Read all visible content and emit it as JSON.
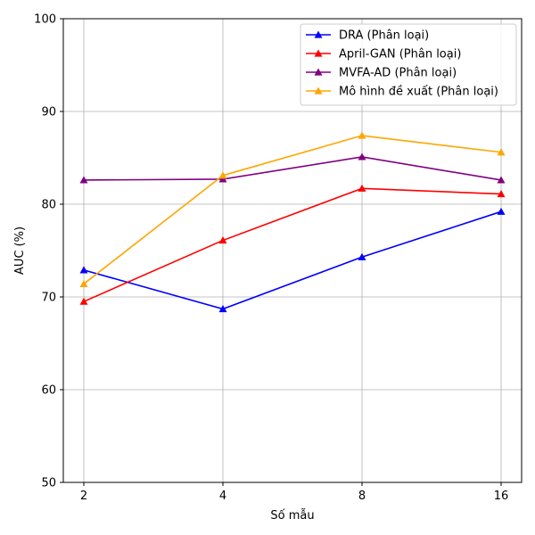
{
  "chart_data": {
    "type": "line",
    "title": "",
    "xlabel": "Số mẫu",
    "ylabel": "AUC (%)",
    "x": [
      "2",
      "4",
      "8",
      "16"
    ],
    "ylim": [
      50,
      100
    ],
    "yticks": [
      50,
      60,
      70,
      80,
      90,
      100
    ],
    "grid": true,
    "legend_position": "top-right",
    "series": [
      {
        "name": "DRA (Phân loại)",
        "color": "#0000ff",
        "marker": "triangle-up",
        "values": [
          72.9,
          68.7,
          74.3,
          79.2
        ]
      },
      {
        "name": "April-GAN (Phân loại)",
        "color": "#ff0000",
        "marker": "triangle-up",
        "values": [
          69.5,
          76.1,
          81.7,
          81.1
        ]
      },
      {
        "name": "MVFA-AD (Phân loại)",
        "color": "#800080",
        "marker": "triangle-up",
        "values": [
          82.6,
          82.7,
          85.1,
          82.6
        ]
      },
      {
        "name": "Mô hình đề xuất (Phân loại)",
        "color": "#ffa500",
        "marker": "triangle-up",
        "values": [
          71.4,
          83.1,
          87.4,
          85.6
        ]
      }
    ]
  }
}
